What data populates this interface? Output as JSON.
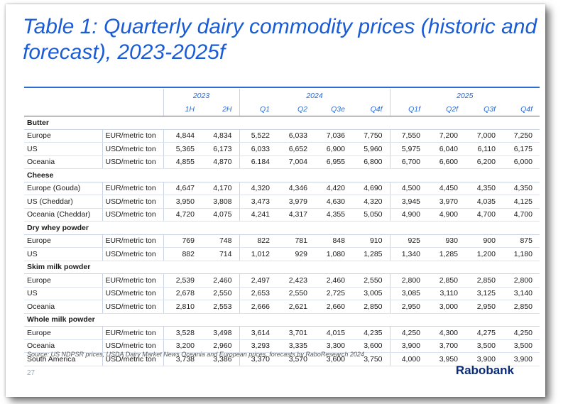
{
  "title": "Table 1: Quarterly dairy commodity prices (historic and forecast), 2023-2025f",
  "years": [
    "2023",
    "2024",
    "2025"
  ],
  "quarters": [
    "1H",
    "2H",
    "Q1",
    "Q2",
    "Q3e",
    "Q4f",
    "Q1f",
    "Q2f",
    "Q3f",
    "Q4f"
  ],
  "sections": [
    {
      "name": "Butter",
      "rows": [
        {
          "region": "Europe",
          "unit": "EUR/metric ton",
          "values": [
            "4,844",
            "4,834",
            "5,522",
            "6,033",
            "7,036",
            "7,750",
            "7,550",
            "7,200",
            "7,000",
            "7,250"
          ]
        },
        {
          "region": "US",
          "unit": "USD/metric ton",
          "values": [
            "5,365",
            "6,173",
            "6,033",
            "6,652",
            "6,900",
            "5,960",
            "5,975",
            "6,040",
            "6,110",
            "6,175"
          ]
        },
        {
          "region": "Oceania",
          "unit": "USD/metric ton",
          "values": [
            "4,855",
            "4,870",
            "6.184",
            "7,004",
            "6,955",
            "6,800",
            "6,700",
            "6,600",
            "6,200",
            "6,000"
          ]
        }
      ]
    },
    {
      "name": "Cheese",
      "rows": [
        {
          "region": "Europe (Gouda)",
          "unit": "EUR/metric ton",
          "values": [
            "4,647",
            "4,170",
            "4,320",
            "4,346",
            "4,420",
            "4,690",
            "4,500",
            "4,450",
            "4,350",
            "4,350"
          ]
        },
        {
          "region": "US (Cheddar)",
          "unit": "USD/metric ton",
          "values": [
            "3,950",
            "3,808",
            "3,473",
            "3,979",
            "4,630",
            "4,320",
            "3,945",
            "3,970",
            "4,035",
            "4,125"
          ]
        },
        {
          "region": "Oceania (Cheddar)",
          "unit": "USD/metric ton",
          "values": [
            "4,720",
            "4,075",
            "4,241",
            "4,317",
            "4,355",
            "5,050",
            "4,900",
            "4,900",
            "4,700",
            "4,700"
          ]
        }
      ]
    },
    {
      "name": "Dry whey powder",
      "rows": [
        {
          "region": "Europe",
          "unit": "EUR/metric ton",
          "values": [
            "769",
            "748",
            "822",
            "781",
            "848",
            "910",
            "925",
            "930",
            "900",
            "875"
          ]
        },
        {
          "region": "US",
          "unit": "USD/metric ton",
          "values": [
            "882",
            "714",
            "1,012",
            "929",
            "1,080",
            "1,285",
            "1,340",
            "1,285",
            "1,200",
            "1,180"
          ]
        }
      ]
    },
    {
      "name": "Skim milk powder",
      "rows": [
        {
          "region": "Europe",
          "unit": "EUR/metric ton",
          "values": [
            "2,539",
            "2,460",
            "2,497",
            "2,423",
            "2,460",
            "2,550",
            "2,800",
            "2,850",
            "2,850",
            "2,800"
          ]
        },
        {
          "region": "US",
          "unit": "USD/metric ton",
          "values": [
            "2,678",
            "2,550",
            "2,653",
            "2,550",
            "2,725",
            "3,005",
            "3,085",
            "3,110",
            "3,125",
            "3,140"
          ]
        },
        {
          "region": "Oceania",
          "unit": "USD/metric ton",
          "values": [
            "2,810",
            "2,553",
            "2,666",
            "2,621",
            "2,660",
            "2,850",
            "2,950",
            "3,000",
            "2,950",
            "2,850"
          ]
        }
      ]
    },
    {
      "name": "Whole milk powder",
      "rows": [
        {
          "region": "Europe",
          "unit": "EUR/metric ton",
          "values": [
            "3,528",
            "3,498",
            "3,614",
            "3,701",
            "4,015",
            "4,235",
            "4,250",
            "4,300",
            "4,275",
            "4,250"
          ]
        },
        {
          "region": "Oceania",
          "unit": "USD/metric ton",
          "values": [
            "3,200",
            "2,960",
            "3,293",
            "3,335",
            "3,300",
            "3,600",
            "3,900",
            "3,700",
            "3,500",
            "3,500"
          ]
        },
        {
          "region": "South America",
          "unit": "USD/metric ton",
          "values": [
            "3,738",
            "3,386",
            "3,370",
            "3,570",
            "3,600",
            "3,750",
            "4,000",
            "3,950",
            "3,900",
            "3,900"
          ]
        }
      ]
    }
  ],
  "source": "Source: US NDPSR prices, USDA Dairy Market News Oceania and European prices, forecasts by RaboResearch 2024",
  "page_number": "27",
  "logo": "Rabobank",
  "colors": {
    "accent": "#1a5bd6",
    "logo": "#0a2a7a"
  }
}
